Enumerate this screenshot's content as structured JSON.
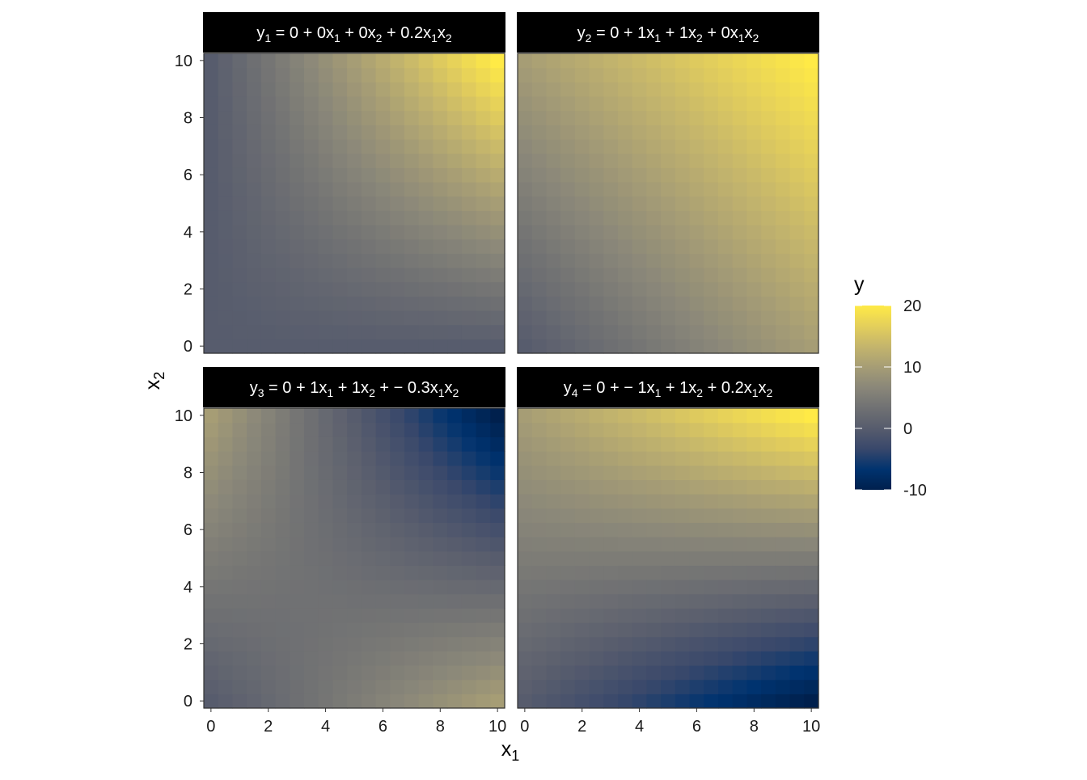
{
  "chart_data": {
    "type": "heatmap",
    "x": [
      0,
      0.5,
      1,
      1.5,
      2,
      2.5,
      3,
      3.5,
      4,
      4.5,
      5,
      5.5,
      6,
      6.5,
      7,
      7.5,
      8,
      8.5,
      9,
      9.5,
      10
    ],
    "y": [
      0,
      0.5,
      1,
      1.5,
      2,
      2.5,
      3,
      3.5,
      4,
      4.5,
      5,
      5.5,
      6,
      6.5,
      7,
      7.5,
      8,
      8.5,
      9,
      9.5,
      10
    ],
    "xlabel": "x1",
    "ylabel": "x2",
    "xlim": [
      -0.25,
      10.25
    ],
    "ylim": [
      -0.25,
      10.25
    ],
    "xticks": [
      "0",
      "2",
      "4",
      "6",
      "8",
      "10"
    ],
    "yticks": [
      "0",
      "2",
      "4",
      "6",
      "8",
      "10"
    ],
    "panels": [
      {
        "title": "y1 = 0 + 0x1 + 0x2 + 0.2x1x2",
        "coef": [
          0,
          0,
          0,
          0.2
        ]
      },
      {
        "title": "y2 = 0 + 1x1 + 1x2 + 0x1x2",
        "coef": [
          0,
          1,
          1,
          0
        ]
      },
      {
        "title": "y3 = 0 + 1x1 + 1x2 + − 0.3x1x2",
        "coef": [
          0,
          1,
          1,
          -0.3
        ]
      },
      {
        "title": "y4 = 0 + − 1x1 + 1x2 + 0.2x1x2",
        "coef": [
          0,
          -1,
          1,
          0.2
        ]
      }
    ],
    "legend": {
      "title": "y",
      "palette": "cividis",
      "limits": [
        -10,
        20
      ],
      "breaks": [
        "-10",
        "0",
        "10",
        "20"
      ],
      "colors": [
        "#00204D",
        "#00336F",
        "#39486B",
        "#575C6D",
        "#707173",
        "#8A8779",
        "#A69D75",
        "#C4B56C",
        "#E4CF5B",
        "#FFEA46"
      ],
      "placement": "right"
    }
  }
}
